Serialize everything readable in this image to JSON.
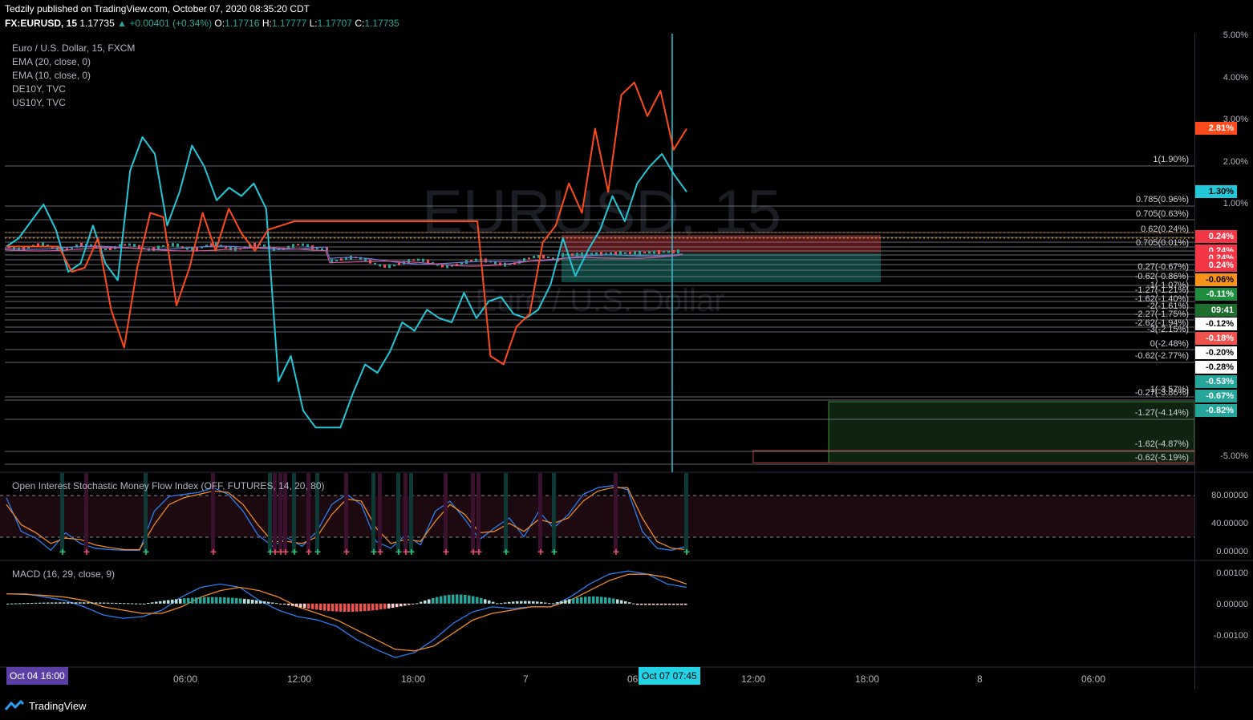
{
  "header": {
    "line1": "Tedzily published on TradingView.com, October 07, 2020 08:35:20 CDT",
    "symbol": "FX:EURUSD, 15",
    "last": "1.17735",
    "change": "▲ +0.00401 (+0.34%)",
    "o_label": "O:",
    "o": "1.17716",
    "h_label": "H:",
    "h": "1.17777",
    "l_label": "L:",
    "l": "1.17707",
    "c_label": "C:",
    "c": "1.17735"
  },
  "legend": [
    "Euro / U.S. Dollar, 15, FXCM",
    "EMA (20, close, 0)",
    "EMA (10, close, 0)",
    "DE10Y, TVC",
    "US10Y, TVC"
  ],
  "watermark": {
    "symbol": "EURUSD, 15",
    "name": "Euro / U.S. Dollar"
  },
  "main_axis": [
    "5.00%",
    "4.00%",
    "3.00%",
    "2.00%",
    "1.00%",
    "-5.00%"
  ],
  "badges": [
    {
      "text": "2.81%",
      "bg": "#ff4a1c",
      "fg": "#ffffff"
    },
    {
      "text": "1.30%",
      "bg": "#22c7d8",
      "fg": "#000000"
    },
    {
      "text": "0.24%",
      "bg": "#f23645",
      "fg": "#ffffff"
    },
    {
      "text": "0.24%",
      "bg": "#f23645",
      "fg": "#ffffff"
    },
    {
      "text": "0.24%",
      "bg": "#f23645",
      "fg": "#ffffff"
    },
    {
      "text": "0.24%",
      "bg": "#f23645",
      "fg": "#ffffff"
    },
    {
      "text": "-0.06%",
      "bg": "#f7931a",
      "fg": "#000000"
    },
    {
      "text": "-0.11%",
      "bg": "#1e8e3e",
      "fg": "#ffffff"
    },
    {
      "text": "09:41",
      "bg": "#1e6e2e",
      "fg": "#ffffff"
    },
    {
      "text": "-0.12%",
      "bg": "#ffffff",
      "fg": "#000000"
    },
    {
      "text": "-0.18%",
      "bg": "#ef5350",
      "fg": "#ffffff"
    },
    {
      "text": "-0.20%",
      "bg": "#ffffff",
      "fg": "#000000"
    },
    {
      "text": "-0.28%",
      "bg": "#ffffff",
      "fg": "#000000"
    },
    {
      "text": "-0.53%",
      "bg": "#26a69a",
      "fg": "#ffffff"
    },
    {
      "text": "-0.67%",
      "bg": "#26a69a",
      "fg": "#ffffff"
    },
    {
      "text": "-0.82%",
      "bg": "#26a69a",
      "fg": "#ffffff"
    }
  ],
  "fib_labels": [
    "1(1.90%)",
    "0.785(0.96%)",
    "0.705(0.63%)",
    "0.62(0.24%)",
    "0.705(0.01%)",
    "0.27(-0.67%)",
    "-0.62(-0.86%)",
    "-1(-1.07%)",
    "-1.27(-1.21%)",
    "-1.62(-1.40%)",
    "-2(-1.61%)",
    "-2.27(-1.75%)",
    "-2.62(-1.94%)",
    "-3(-2.15%)",
    "0(-2.48%)",
    "-0.62(-2.77%)",
    "-1(-3.57%)",
    "-0.27(-3.86%)",
    "-1.27(-4.14%)",
    "-1.62(-4.87%)",
    "-0.62(-5.19%)"
  ],
  "oscillator": {
    "title": "Open Interest Stochastic Money Flow Index (OFF, FUTURES, 14, 20, 80)",
    "axis": [
      "80.00000",
      "40.00000",
      "0.00000"
    ]
  },
  "macd": {
    "title": "MACD (16, 29, close, 9)",
    "axis": [
      "0.00100",
      "0.00000",
      "-0.00100"
    ]
  },
  "time_axis": [
    "06:00",
    "12:00",
    "18:00",
    "7",
    "06",
    "12:00",
    "18:00",
    "8",
    "06:00"
  ],
  "time_badges": {
    "start": "Oct 04   16:00",
    "cursor": "Oct 07   07:45"
  },
  "footer": "TradingView",
  "colors": {
    "us10y": "#22c7d8",
    "de10y": "#ff4a1c",
    "bg": "#000000",
    "grid": "#2a2e39"
  },
  "chart_data": [
    {
      "type": "line",
      "title": "Euro / U.S. Dollar, 15, FXCM",
      "ylabel": "%",
      "ylim": [
        -5.2,
        5.0
      ],
      "series": [
        {
          "name": "US10Y, TVC",
          "values": [
            0.0,
            0.2,
            0.6,
            1.0,
            0.4,
            -0.6,
            -0.4,
            0.5,
            -0.4,
            -0.8,
            1.8,
            2.6,
            2.2,
            0.5,
            1.3,
            2.4,
            1.9,
            1.1,
            1.4,
            1.2,
            1.5,
            0.9,
            -3.2,
            -2.6,
            -3.9,
            -4.3,
            -4.3,
            -4.3,
            -3.5,
            -2.8,
            -3.0,
            -2.5,
            -1.8,
            -2.0,
            -1.5,
            -1.7,
            -1.8,
            -1.1,
            -1.7,
            -1.3,
            -1.2,
            -1.6,
            -1.7,
            -1.5,
            -0.9,
            0.2,
            -0.7,
            -0.1,
            0.4,
            1.2,
            0.6,
            1.5,
            1.9,
            2.2,
            1.7,
            1.3
          ]
        },
        {
          "name": "DE10Y, TVC",
          "values": [
            0.0,
            0.0,
            0.0,
            0.0,
            0.0,
            -0.6,
            -0.5,
            0.2,
            -1.5,
            -2.4,
            -0.5,
            0.8,
            0.7,
            -1.4,
            -0.5,
            0.8,
            -0.1,
            0.9,
            0.3,
            -0.1,
            0.4,
            0.5,
            0.6,
            0.6,
            0.6,
            0.6,
            0.6,
            0.6,
            0.6,
            0.6,
            0.6,
            0.6,
            0.6,
            0.6,
            0.6,
            0.6,
            0.6,
            -2.6,
            -2.8,
            -1.9,
            -1.6,
            0.1,
            0.5,
            1.5,
            0.8,
            2.8,
            1.3,
            3.6,
            3.9,
            3.1,
            3.7,
            2.3,
            2.8
          ]
        }
      ]
    },
    {
      "type": "line",
      "title": "Open Interest Stochastic Money Flow Index (OFF, FUTURES, 14, 20, 80)",
      "ylim": [
        0,
        100
      ],
      "series": [
        {
          "values": [
            80,
            30,
            20,
            2,
            28,
            12,
            5,
            3,
            2,
            2,
            60,
            82,
            85,
            88,
            95,
            85,
            60,
            25,
            8,
            20,
            8,
            30,
            70,
            85,
            70,
            15,
            5,
            25,
            10,
            60,
            75,
            48,
            18,
            35,
            50,
            22,
            60,
            35,
            55,
            85,
            95,
            98,
            92,
            30,
            5,
            2,
            8
          ]
        },
        {
          "values": [
            70,
            40,
            28,
            12,
            20,
            18,
            10,
            6,
            3,
            3,
            40,
            70,
            80,
            85,
            90,
            88,
            70,
            40,
            15,
            15,
            12,
            22,
            55,
            78,
            75,
            35,
            12,
            18,
            15,
            45,
            70,
            55,
            28,
            30,
            42,
            30,
            48,
            42,
            50,
            75,
            90,
            95,
            95,
            50,
            15,
            5,
            3
          ]
        }
      ]
    },
    {
      "type": "bar",
      "title": "MACD (16, 29, close, 9)",
      "ylim": [
        -0.0017,
        0.0012
      ],
      "series": [
        {
          "name": "MACD",
          "values": [
            0.0003,
            0.0003,
            0.0002,
            0.0001,
            -0.0001,
            -0.00035,
            -0.00045,
            -0.0004,
            -0.0002,
            0.0002,
            0.0005,
            0.0006,
            0.0005,
            0.0001,
            -0.0002,
            -0.0004,
            -0.0005,
            -0.0007,
            -0.0011,
            -0.0014,
            -0.00165,
            -0.0015,
            -0.0011,
            -0.0006,
            -0.00025,
            -0.0001,
            -0.00015,
            -0.0001,
            -0.0001,
            0.0002,
            0.0006,
            0.0009,
            0.001,
            0.0009,
            0.0006,
            0.0005
          ]
        },
        {
          "name": "Signal",
          "values": [
            0.0003,
            0.00028,
            0.00025,
            0.0002,
            0.0001,
            -0.0001,
            -0.0002,
            -0.0003,
            -0.0003,
            -0.0001,
            0.0002,
            0.0004,
            0.0005,
            0.0004,
            0.0002,
            -0.0001,
            -0.0003,
            -0.0005,
            -0.0008,
            -0.0011,
            -0.0014,
            -0.00145,
            -0.0013,
            -0.0009,
            -0.0005,
            -0.0003,
            -0.0002,
            -0.0001,
            -0.0001,
            0.0001,
            0.0004,
            0.0007,
            0.0009,
            0.0009,
            0.0008,
            0.0006
          ]
        }
      ]
    }
  ]
}
